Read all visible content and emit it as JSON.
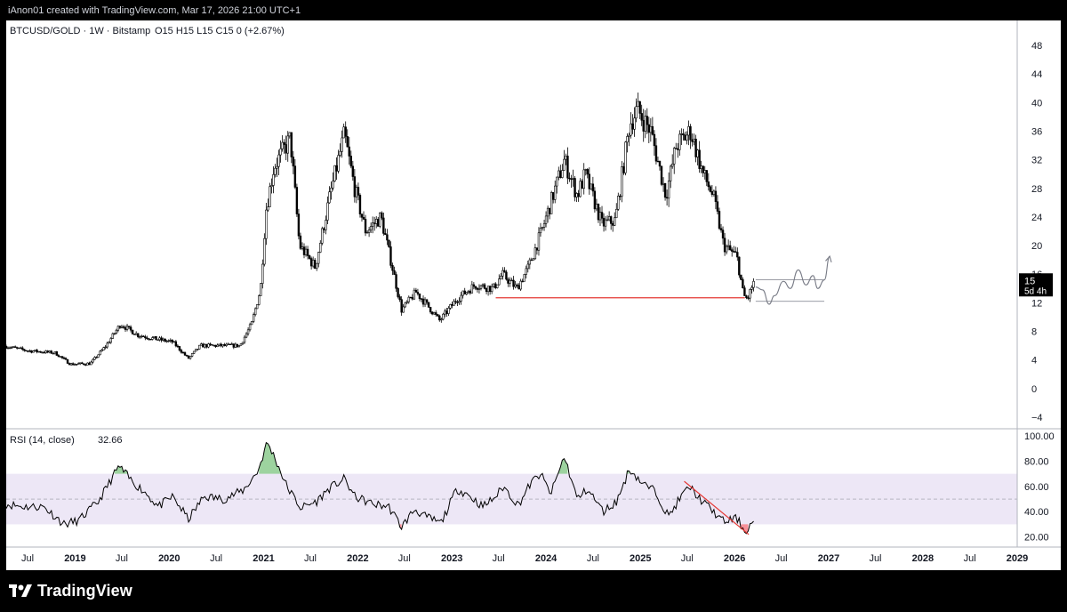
{
  "header": {
    "attribution": "iAnon01 created with TradingView.com, Mar 17, 2026 21:00 UTC+1"
  },
  "footer": {
    "brand": "TradingView",
    "logo_icon": "tradingview-logo-icon"
  },
  "colors": {
    "background": "#ffffff",
    "frame": "#000000",
    "candles": "#000000",
    "support_line": "#e53935",
    "projection": "#787b86",
    "rsi_band": "#ede7f6",
    "rsi_overbought_fill": "#4caf50",
    "rsi_oversold_fill": "#f23645",
    "rsi_trendline": "#e53935",
    "price_badge": "#000000"
  },
  "chart_data": [
    {
      "type": "candlestick",
      "legend": {
        "symbol": "BTCUSD/GOLD · 1W · Bitstamp",
        "ohlc": "O15  H15  L15  C15  0 (+2.67%)"
      },
      "y_ticks": [
        "48",
        "44",
        "40",
        "36",
        "32",
        "28",
        "24",
        "20",
        "16",
        "12",
        "8",
        "4",
        "0",
        "−4"
      ],
      "ylim": [
        -5.5,
        50
      ],
      "x_labels": [
        "Jul",
        "2019",
        "Jul",
        "2020",
        "Jul",
        "2021",
        "Jul",
        "2022",
        "Jul",
        "2023",
        "Jul",
        "2024",
        "Jul",
        "2025",
        "Jul",
        "2026",
        "Jul",
        "2027",
        "Jul",
        "2028",
        "Jul",
        "2029"
      ],
      "xlim": [
        "2018-04-09",
        "2029-01-01"
      ],
      "last_price": {
        "value": "15",
        "countdown": "5d 4h"
      },
      "price_path": [
        [
          "2018-04-09",
          5.9
        ],
        [
          "2018-07-01",
          5.3
        ],
        [
          "2018-10-15",
          5.0
        ],
        [
          "2018-12-15",
          3.4
        ],
        [
          "2019-03-01",
          3.5
        ],
        [
          "2019-05-01",
          6.0
        ],
        [
          "2019-06-26",
          9.0
        ],
        [
          "2019-09-01",
          7.5
        ],
        [
          "2019-11-01",
          7.0
        ],
        [
          "2020-01-15",
          6.5
        ],
        [
          "2020-03-15",
          4.2
        ],
        [
          "2020-05-01",
          6.0
        ],
        [
          "2020-08-01",
          6.0
        ],
        [
          "2020-10-01",
          6.0
        ],
        [
          "2020-11-15",
          9.0
        ],
        [
          "2020-12-20",
          14.0
        ],
        [
          "2021-01-10",
          25.0
        ],
        [
          "2021-02-10",
          31.0
        ],
        [
          "2021-04-15",
          35.0
        ],
        [
          "2021-05-20",
          20.0
        ],
        [
          "2021-07-20",
          17.0
        ],
        [
          "2021-09-15",
          27.0
        ],
        [
          "2021-11-10",
          35.5
        ],
        [
          "2021-12-20",
          28.0
        ],
        [
          "2022-02-01",
          22.0
        ],
        [
          "2022-04-01",
          24.0
        ],
        [
          "2022-05-15",
          17.0
        ],
        [
          "2022-06-20",
          11.0
        ],
        [
          "2022-08-15",
          13.5
        ],
        [
          "2022-10-01",
          11.5
        ],
        [
          "2022-11-15",
          9.5
        ],
        [
          "2023-01-20",
          12.5
        ],
        [
          "2023-04-01",
          14.5
        ],
        [
          "2023-06-10",
          14.0
        ],
        [
          "2023-07-15",
          16.0
        ],
        [
          "2023-09-10",
          14.0
        ],
        [
          "2023-10-25",
          17.0
        ],
        [
          "2023-12-15",
          22.0
        ],
        [
          "2024-03-12",
          32.0
        ],
        [
          "2024-05-01",
          27.0
        ],
        [
          "2024-06-01",
          30.0
        ],
        [
          "2024-08-05",
          23.0
        ],
        [
          "2024-09-25",
          23.5
        ],
        [
          "2024-11-20",
          37.0
        ],
        [
          "2024-12-20",
          39.0
        ],
        [
          "2025-02-10",
          36.0
        ],
        [
          "2025-04-10",
          27.0
        ],
        [
          "2025-05-20",
          34.0
        ],
        [
          "2025-07-15",
          36.0
        ],
        [
          "2025-09-01",
          30.0
        ],
        [
          "2025-10-10",
          27.0
        ],
        [
          "2025-11-20",
          20.0
        ],
        [
          "2026-01-10",
          18.5
        ],
        [
          "2026-02-05",
          13.0
        ],
        [
          "2026-02-20",
          12.5
        ],
        [
          "2026-03-17",
          15.0
        ]
      ],
      "support_line": {
        "from": [
          "2023-06-20",
          12.7
        ],
        "to": [
          "2026-02-10",
          12.7
        ]
      },
      "projection_box": {
        "from": "2026-03-24",
        "to": "2026-12-15",
        "top": 15.2,
        "bottom": 12.2
      },
      "projection_path": [
        [
          "2026-03-24",
          14.2
        ],
        [
          "2026-04-20",
          13.8
        ],
        [
          "2026-05-15",
          11.8
        ],
        [
          "2026-06-05",
          13.0
        ],
        [
          "2026-07-10",
          15.0
        ],
        [
          "2026-08-05",
          14.0
        ],
        [
          "2026-09-05",
          16.6
        ],
        [
          "2026-10-05",
          14.5
        ],
        [
          "2026-11-01",
          15.8
        ],
        [
          "2026-11-20",
          14.0
        ],
        [
          "2026-12-15",
          15.2
        ],
        [
          "2027-01-05",
          18.5
        ]
      ]
    },
    {
      "type": "line",
      "legend": {
        "name": "RSI (14, close)",
        "value": "32.66"
      },
      "y_ticks": [
        "100.00",
        "80.00",
        "60.00",
        "40.00",
        "20.00"
      ],
      "ylim": [
        12,
        100
      ],
      "band": {
        "upper": 70,
        "lower": 30,
        "middle": 50
      },
      "rsi_path": [
        [
          "2018-04-09",
          46
        ],
        [
          "2018-06-15",
          44
        ],
        [
          "2018-09-01",
          44
        ],
        [
          "2018-11-20",
          30
        ],
        [
          "2019-01-15",
          33
        ],
        [
          "2019-04-01",
          48
        ],
        [
          "2019-06-20",
          76
        ],
        [
          "2019-08-10",
          64
        ],
        [
          "2019-10-01",
          55
        ],
        [
          "2019-11-20",
          44
        ],
        [
          "2020-01-15",
          52
        ],
        [
          "2020-03-15",
          34
        ],
        [
          "2020-05-15",
          52
        ],
        [
          "2020-08-01",
          50
        ],
        [
          "2020-10-15",
          57
        ],
        [
          "2020-12-10",
          72
        ],
        [
          "2021-01-15",
          95
        ],
        [
          "2021-02-15",
          82
        ],
        [
          "2021-04-01",
          60
        ],
        [
          "2021-05-25",
          43
        ],
        [
          "2021-07-25",
          48
        ],
        [
          "2021-09-10",
          58
        ],
        [
          "2021-11-10",
          66
        ],
        [
          "2021-12-20",
          52
        ],
        [
          "2022-03-01",
          46
        ],
        [
          "2022-05-01",
          44
        ],
        [
          "2022-06-20",
          28
        ],
        [
          "2022-08-10",
          42
        ],
        [
          "2022-09-20",
          36
        ],
        [
          "2022-11-20",
          31
        ],
        [
          "2023-01-20",
          58
        ],
        [
          "2023-03-01",
          54
        ],
        [
          "2023-05-01",
          44
        ],
        [
          "2023-06-20",
          52
        ],
        [
          "2023-07-20",
          60
        ],
        [
          "2023-09-15",
          45
        ],
        [
          "2023-11-01",
          62
        ],
        [
          "2023-12-10",
          70
        ],
        [
          "2024-01-20",
          54
        ],
        [
          "2024-03-12",
          84
        ],
        [
          "2024-05-01",
          50
        ],
        [
          "2024-06-10",
          58
        ],
        [
          "2024-08-10",
          40
        ],
        [
          "2024-10-01",
          48
        ],
        [
          "2024-11-20",
          74
        ],
        [
          "2025-01-10",
          62
        ],
        [
          "2025-03-01",
          56
        ],
        [
          "2025-04-20",
          36
        ],
        [
          "2025-06-01",
          50
        ],
        [
          "2025-07-10",
          60
        ],
        [
          "2025-08-20",
          50
        ],
        [
          "2025-10-01",
          42
        ],
        [
          "2025-11-20",
          32
        ],
        [
          "2026-01-10",
          35
        ],
        [
          "2026-02-10",
          24
        ],
        [
          "2026-03-17",
          32.66
        ]
      ],
      "rsi_trendline": {
        "from": [
          "2025-06-20",
          64
        ],
        "to": [
          "2026-02-25",
          22
        ]
      }
    }
  ]
}
